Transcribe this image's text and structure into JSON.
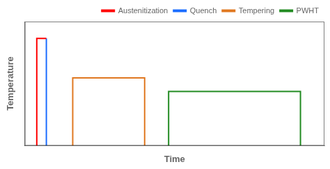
{
  "chart_data": {
    "type": "line",
    "xlabel": "Time",
    "ylabel": "Temperature",
    "series": [
      {
        "name": "Austenitization",
        "color": "#ff0000",
        "x": [
          1,
          1,
          1.4
        ],
        "values": [
          0,
          9.5,
          9.5
        ]
      },
      {
        "name": "Quench",
        "color": "#1a6cff",
        "x": [
          1.4,
          1.4
        ],
        "values": [
          9.5,
          0
        ]
      },
      {
        "name": "Tempering",
        "color": "#e07820",
        "x": [
          2.5,
          2.5,
          5.5,
          5.5
        ],
        "values": [
          0,
          6.0,
          6.0,
          0
        ]
      },
      {
        "name": "PWHT",
        "color": "#228b22",
        "x": [
          6.5,
          6.5,
          12.0,
          12.0
        ],
        "values": [
          0,
          4.8,
          4.8,
          0
        ]
      }
    ],
    "xlim": [
      0.5,
      13
    ],
    "ylim": [
      0,
      11
    ],
    "tick_labels": false,
    "grid": false,
    "legend": "upper right"
  }
}
